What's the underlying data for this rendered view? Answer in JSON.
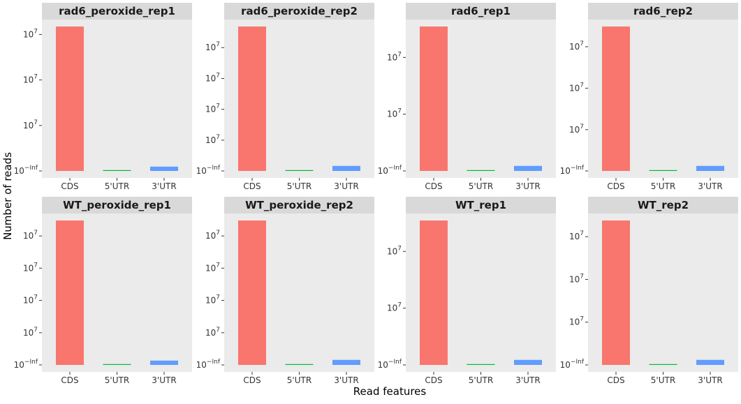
{
  "chart_data": {
    "type": "bar",
    "facets": true,
    "xlabel": "Read features",
    "ylabel": "Number of reads",
    "categories": [
      "CDS",
      "5'UTR",
      "3'UTR"
    ],
    "category_colors": [
      "#F8766D",
      "#00BA38",
      "#619CFF"
    ],
    "panel_background": "#EBEBEB",
    "strip_background": "#D9D9D9",
    "grid": false,
    "legend": "none",
    "y_scale": "log10",
    "y_tick_base": "10",
    "panels": [
      {
        "title": "rad6_peroxide_rep1",
        "values": [
          1.0,
          0.005,
          0.03
        ],
        "y_ticks": [
          {
            "base": "10",
            "exp": "−Inf",
            "pos": 0.0
          },
          {
            "base": "10",
            "exp": "7",
            "pos": 0.315
          },
          {
            "base": "10",
            "exp": "7",
            "pos": 0.63
          },
          {
            "base": "10",
            "exp": "7",
            "pos": 0.945
          }
        ]
      },
      {
        "title": "rad6_peroxide_rep2",
        "values": [
          1.0,
          0.005,
          0.035
        ],
        "y_ticks": [
          {
            "base": "10",
            "exp": "−Inf",
            "pos": 0.0
          },
          {
            "base": "10",
            "exp": "7",
            "pos": 0.213
          },
          {
            "base": "10",
            "exp": "7",
            "pos": 0.427
          },
          {
            "base": "10",
            "exp": "7",
            "pos": 0.64
          },
          {
            "base": "10",
            "exp": "7",
            "pos": 0.854
          }
        ]
      },
      {
        "title": "rad6_rep1",
        "values": [
          1.0,
          0.005,
          0.035
        ],
        "y_ticks": [
          {
            "base": "10",
            "exp": "−Inf",
            "pos": 0.0
          },
          {
            "base": "10",
            "exp": "7",
            "pos": 0.393
          },
          {
            "base": "10",
            "exp": "7",
            "pos": 0.786
          }
        ]
      },
      {
        "title": "rad6_rep2",
        "values": [
          1.0,
          0.005,
          0.035
        ],
        "y_ticks": [
          {
            "base": "10",
            "exp": "−Inf",
            "pos": 0.0
          },
          {
            "base": "10",
            "exp": "7",
            "pos": 0.286
          },
          {
            "base": "10",
            "exp": "7",
            "pos": 0.573
          },
          {
            "base": "10",
            "exp": "7",
            "pos": 0.86
          }
        ]
      },
      {
        "title": "WT_peroxide_rep1",
        "values": [
          1.0,
          0.005,
          0.03
        ],
        "y_ticks": [
          {
            "base": "10",
            "exp": "−Inf",
            "pos": 0.0
          },
          {
            "base": "10",
            "exp": "7",
            "pos": 0.223
          },
          {
            "base": "10",
            "exp": "7",
            "pos": 0.447
          },
          {
            "base": "10",
            "exp": "7",
            "pos": 0.67
          },
          {
            "base": "10",
            "exp": "7",
            "pos": 0.893
          }
        ]
      },
      {
        "title": "WT_peroxide_rep2",
        "values": [
          1.0,
          0.005,
          0.035
        ],
        "y_ticks": [
          {
            "base": "10",
            "exp": "−Inf",
            "pos": 0.0
          },
          {
            "base": "10",
            "exp": "7",
            "pos": 0.223
          },
          {
            "base": "10",
            "exp": "7",
            "pos": 0.447
          },
          {
            "base": "10",
            "exp": "7",
            "pos": 0.67
          },
          {
            "base": "10",
            "exp": "7",
            "pos": 0.893
          }
        ]
      },
      {
        "title": "WT_rep1",
        "values": [
          1.0,
          0.005,
          0.035
        ],
        "y_ticks": [
          {
            "base": "10",
            "exp": "−Inf",
            "pos": 0.0
          },
          {
            "base": "10",
            "exp": "7",
            "pos": 0.393
          },
          {
            "base": "10",
            "exp": "7",
            "pos": 0.786
          }
        ]
      },
      {
        "title": "WT_rep2",
        "values": [
          1.0,
          0.005,
          0.035
        ],
        "y_ticks": [
          {
            "base": "10",
            "exp": "−Inf",
            "pos": 0.0
          },
          {
            "base": "10",
            "exp": "7",
            "pos": 0.296
          },
          {
            "base": "10",
            "exp": "7",
            "pos": 0.592
          },
          {
            "base": "10",
            "exp": "7",
            "pos": 0.888
          }
        ]
      }
    ]
  }
}
